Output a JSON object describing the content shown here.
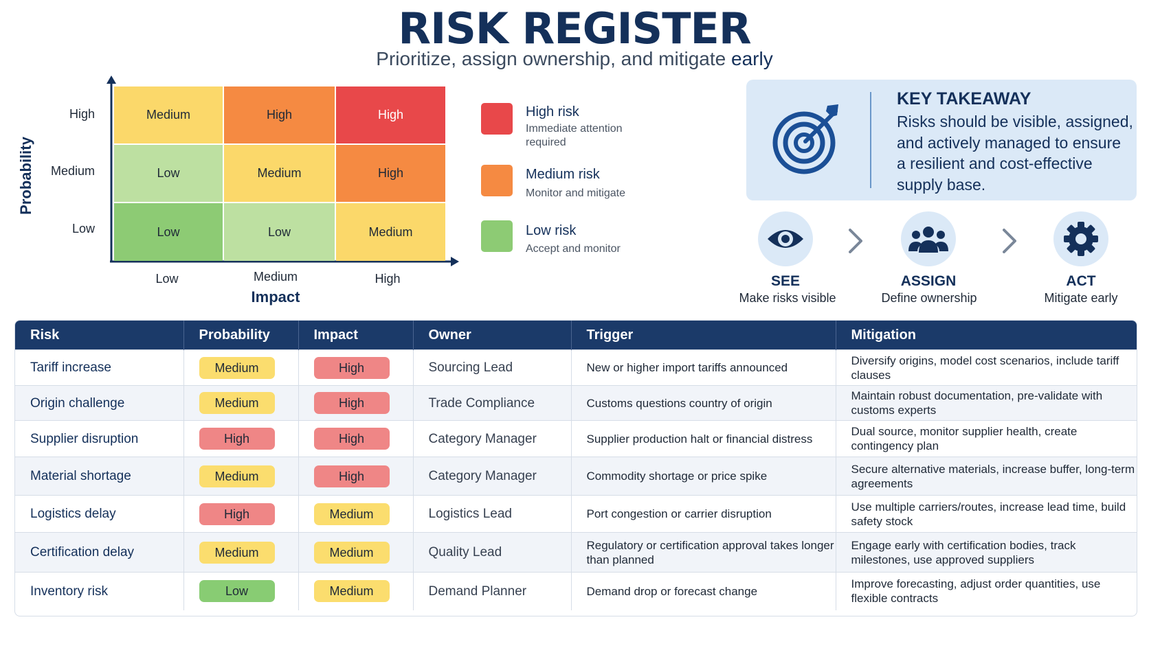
{
  "header": {
    "title": "RISK REGISTER",
    "subtitle_main": "Prioritize, assign ownership, and mitigate",
    "subtitle_emphasis": "early"
  },
  "colors": {
    "navy": "#14305a",
    "high": "#e8484a",
    "high_orange": "#f58a42",
    "medium": "#fbd86a",
    "low_light": "#bde0a1",
    "low_dark": "#8dcb74",
    "pill_high": "#ef8686",
    "pill_medium": "#fbdd6e",
    "pill_low": "#88cc73"
  },
  "matrix": {
    "y_axis_title": "Probability",
    "x_axis_title": "Impact",
    "y_ticks": [
      "High",
      "Medium",
      "Low"
    ],
    "x_ticks": [
      "Low",
      "Medium",
      "High"
    ],
    "rows": [
      [
        "Medium",
        "High",
        "High"
      ],
      [
        "Low",
        "Medium",
        "High"
      ],
      [
        "Low",
        "Low",
        "Medium"
      ]
    ]
  },
  "legend": [
    {
      "title": "High risk",
      "desc": "Immediate attention required",
      "color": "#e8484a"
    },
    {
      "title": "Medium risk",
      "desc": "Monitor and mitigate",
      "color": "#f58a42"
    },
    {
      "title": "Low risk",
      "desc": "Accept and monitor",
      "color": "#8dcb74"
    }
  ],
  "takeaway": {
    "icon": "target-arrow-icon",
    "title": "KEY TAKEAWAY",
    "text": "Risks should be visible, assigned, and actively managed to ensure a resilient and cost-effective supply base."
  },
  "steps": [
    {
      "icon": "eye-icon",
      "title": "SEE",
      "desc": "Make risks visible"
    },
    {
      "icon": "people-icon",
      "title": "ASSIGN",
      "desc": "Define ownership"
    },
    {
      "icon": "gear-icon",
      "title": "ACT",
      "desc": "Mitigate early"
    }
  ],
  "table": {
    "headers": [
      "Risk",
      "Probability",
      "Impact",
      "Owner",
      "Trigger",
      "Mitigation"
    ],
    "rows": [
      {
        "risk": "Tariff increase",
        "probability": "Medium",
        "impact": "High",
        "owner": "Sourcing Lead",
        "trigger": "New or higher import tariffs announced",
        "mitigation": "Diversify origins, model cost scenarios, include tariff clauses"
      },
      {
        "risk": "Origin challenge",
        "probability": "Medium",
        "impact": "High",
        "owner": "Trade Compliance",
        "trigger": "Customs questions country of origin",
        "mitigation": "Maintain robust documentation, pre-validate with customs experts"
      },
      {
        "risk": "Supplier disruption",
        "probability": "High",
        "impact": "High",
        "owner": "Category Manager",
        "trigger": "Supplier production halt or financial distress",
        "mitigation": "Dual source, monitor supplier health, create contingency plan"
      },
      {
        "risk": "Material shortage",
        "probability": "Medium",
        "impact": "High",
        "owner": "Category Manager",
        "trigger": "Commodity shortage or price spike",
        "mitigation": "Secure alternative materials, increase buffer, long-term agreements"
      },
      {
        "risk": "Logistics delay",
        "probability": "High",
        "impact": "Medium",
        "owner": "Logistics Lead",
        "trigger": "Port congestion or carrier disruption",
        "mitigation": "Use multiple carriers/routes, increase lead time, build safety stock"
      },
      {
        "risk": "Certification delay",
        "probability": "Medium",
        "impact": "Medium",
        "owner": "Quality Lead",
        "trigger": "Regulatory or certification approval takes longer than planned",
        "mitigation": "Engage early with certification bodies, track milestones, use approved suppliers"
      },
      {
        "risk": "Inventory risk",
        "probability": "Low",
        "impact": "Medium",
        "owner": "Demand Planner",
        "trigger": "Demand drop or forecast change",
        "mitigation": "Improve forecasting, adjust order quantities, use flexible contracts"
      }
    ]
  }
}
